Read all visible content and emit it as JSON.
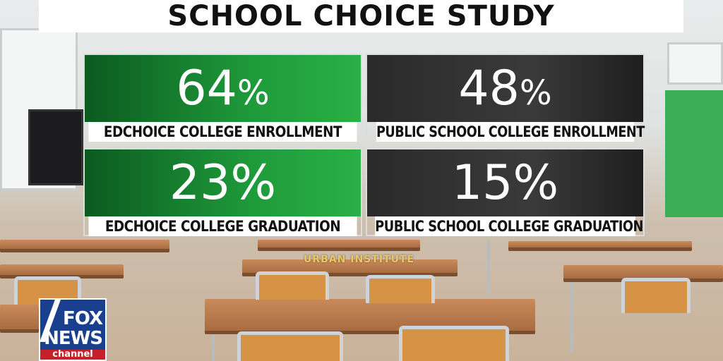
{
  "title": "SCHOOL CHOICE STUDY",
  "stats": [
    {
      "value": "64",
      "unit": "%",
      "label": "EDCHOICE COLLEGE ENROLLMENT",
      "color": "#1e9a3a"
    },
    {
      "value": "48",
      "unit": "%",
      "label": "PUBLIC SCHOOL COLLEGE ENROLLMENT",
      "color": "#333333"
    },
    {
      "value": "23",
      "unit": "%",
      "label": "EDCHOICE COLLEGE GRADUATION",
      "color": "#1e9a3a"
    },
    {
      "value": "15",
      "unit": "%",
      "label": "PUBLIC SCHOOL COLLEGE GRADUATION",
      "color": "#333333"
    }
  ],
  "source": "URBAN INSTITUTE",
  "logo": {
    "line1": "FOX",
    "line2": "NEWS",
    "line3": "channel"
  }
}
